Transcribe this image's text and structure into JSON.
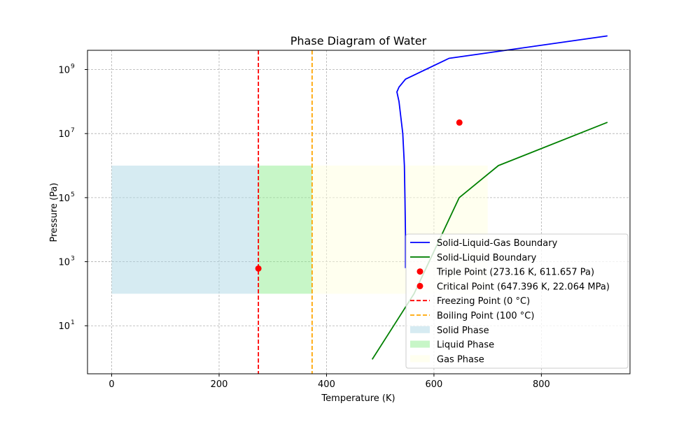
{
  "chart_data": {
    "type": "line",
    "title": "Phase Diagram of Water",
    "xlabel": "Temperature (K)",
    "ylabel": "Pressure (Pa)",
    "xlim": [
      -45,
      965
    ],
    "ylim_log10": [
      -0.5,
      9.6
    ],
    "yscale": "log",
    "grid": true,
    "legend_position": "lower-right",
    "x_ticks": [
      {
        "value": 0,
        "label": "0"
      },
      {
        "value": 200,
        "label": "200"
      },
      {
        "value": 400,
        "label": "400"
      },
      {
        "value": 600,
        "label": "600"
      },
      {
        "value": 800,
        "label": "800"
      }
    ],
    "y_ticks": [
      {
        "exp": 1,
        "base": "10",
        "sup": "1"
      },
      {
        "exp": 3,
        "base": "10",
        "sup": "3"
      },
      {
        "exp": 5,
        "base": "10",
        "sup": "5"
      },
      {
        "exp": 7,
        "base": "10",
        "sup": "7"
      },
      {
        "exp": 9,
        "base": "10",
        "sup": "9"
      }
    ],
    "series": [
      {
        "name": "Solid-Liquid-Gas Boundary",
        "kind": "line",
        "color": "#0000ff",
        "style": "solid",
        "x": [
          547,
          547,
          546,
          545,
          542,
          535,
          531,
          535,
          547,
          628,
          923
        ],
        "log10_y": [
          2.8,
          3.8,
          5.0,
          6.0,
          7.0,
          8.0,
          8.3,
          8.45,
          8.7,
          9.35,
          10.05
        ]
      },
      {
        "name": "Solid-Liquid Boundary",
        "kind": "line",
        "color": "#008000",
        "style": "solid",
        "x": [
          485,
          525,
          563,
          647,
          720,
          923
        ],
        "log10_y": [
          -0.05,
          1.0,
          2.0,
          5.0,
          6.0,
          7.35
        ]
      },
      {
        "name": "Triple Point (273.16 K, 611.657 Pa)",
        "kind": "point",
        "color": "#ff0000",
        "x": [
          273.16
        ],
        "y": [
          611.657
        ]
      },
      {
        "name": "Critical Point (647.396 K, 22.064 MPa)",
        "kind": "point",
        "color": "#ff0000",
        "x": [
          647.396
        ],
        "y": [
          22064000
        ]
      },
      {
        "name": "Freezing Point (0 °C)",
        "kind": "vline",
        "color": "#ff0000",
        "style": "dashed",
        "x": 273.15
      },
      {
        "name": "Boiling Point (100 °C)",
        "kind": "vline",
        "color": "#ffa500",
        "style": "dashed",
        "x": 373.15
      },
      {
        "name": "Solid Phase",
        "kind": "region",
        "color": "#add8e6",
        "x_range": [
          0,
          273.15
        ],
        "y_range": [
          100,
          1000000
        ]
      },
      {
        "name": "Liquid Phase",
        "kind": "region",
        "color": "#90ee90",
        "x_range": [
          273.15,
          373.15
        ],
        "y_range": [
          100,
          1000000
        ]
      },
      {
        "name": "Gas Phase",
        "kind": "region",
        "color": "#ffffe0",
        "x_range": [
          373.15,
          700
        ],
        "y_range": [
          100,
          1000000
        ]
      }
    ]
  }
}
